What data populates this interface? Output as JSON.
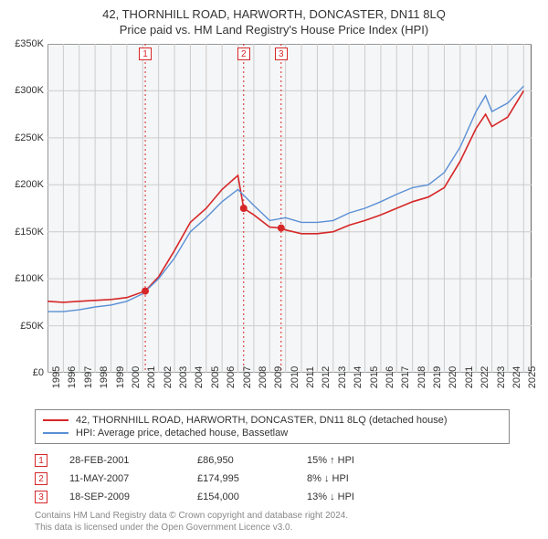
{
  "title": {
    "line1": "42, THORNHILL ROAD, HARWORTH, DONCASTER, DN11 8LQ",
    "line2": "Price paid vs. HM Land Registry's House Price Index (HPI)"
  },
  "chart": {
    "type": "line",
    "background_color": "#f5f6f7",
    "border_color": "#666666",
    "grid_color": "#cccccc",
    "xlim": [
      1995,
      2025.5
    ],
    "ylim": [
      0,
      350000
    ],
    "ytick_step": 50000,
    "yticks": [
      {
        "v": 0,
        "label": "£0"
      },
      {
        "v": 50000,
        "label": "£50K"
      },
      {
        "v": 100000,
        "label": "£100K"
      },
      {
        "v": 150000,
        "label": "£150K"
      },
      {
        "v": 200000,
        "label": "£200K"
      },
      {
        "v": 250000,
        "label": "£250K"
      },
      {
        "v": 300000,
        "label": "£300K"
      },
      {
        "v": 350000,
        "label": "£350K"
      }
    ],
    "xticks": [
      1995,
      1996,
      1997,
      1998,
      1999,
      2000,
      2001,
      2002,
      2003,
      2004,
      2005,
      2006,
      2007,
      2008,
      2009,
      2010,
      2011,
      2012,
      2013,
      2014,
      2015,
      2016,
      2017,
      2018,
      2019,
      2020,
      2021,
      2022,
      2023,
      2024,
      2025
    ],
    "series": [
      {
        "name": "price_paid",
        "color": "#d62728",
        "line_width": 1.6,
        "data": [
          [
            1995,
            76000
          ],
          [
            1996,
            75000
          ],
          [
            1997,
            76000
          ],
          [
            1998,
            77000
          ],
          [
            1999,
            78000
          ],
          [
            2000,
            80000
          ],
          [
            2001.16,
            86950
          ],
          [
            2002,
            102000
          ],
          [
            2003,
            130000
          ],
          [
            2004,
            160000
          ],
          [
            2005,
            175000
          ],
          [
            2006,
            195000
          ],
          [
            2007,
            210000
          ],
          [
            2007.36,
            174995
          ],
          [
            2008,
            168000
          ],
          [
            2009,
            155000
          ],
          [
            2009.72,
            154000
          ],
          [
            2010,
            152000
          ],
          [
            2011,
            148000
          ],
          [
            2012,
            148000
          ],
          [
            2013,
            150000
          ],
          [
            2014,
            157000
          ],
          [
            2015,
            162000
          ],
          [
            2016,
            168000
          ],
          [
            2017,
            175000
          ],
          [
            2018,
            182000
          ],
          [
            2019,
            187000
          ],
          [
            2020,
            197000
          ],
          [
            2021,
            225000
          ],
          [
            2022,
            260000
          ],
          [
            2022.6,
            275000
          ],
          [
            2023,
            262000
          ],
          [
            2024,
            272000
          ],
          [
            2025,
            300000
          ]
        ]
      },
      {
        "name": "hpi",
        "color": "#5a8fd6",
        "line_width": 1.4,
        "data": [
          [
            1995,
            65000
          ],
          [
            1996,
            65000
          ],
          [
            1997,
            67000
          ],
          [
            1998,
            70000
          ],
          [
            1999,
            72000
          ],
          [
            2000,
            76000
          ],
          [
            2001,
            84000
          ],
          [
            2002,
            100000
          ],
          [
            2003,
            122000
          ],
          [
            2004,
            150000
          ],
          [
            2005,
            165000
          ],
          [
            2006,
            182000
          ],
          [
            2007,
            195000
          ],
          [
            2008,
            178000
          ],
          [
            2009,
            162000
          ],
          [
            2010,
            165000
          ],
          [
            2011,
            160000
          ],
          [
            2012,
            160000
          ],
          [
            2013,
            162000
          ],
          [
            2014,
            170000
          ],
          [
            2015,
            175000
          ],
          [
            2016,
            182000
          ],
          [
            2017,
            190000
          ],
          [
            2018,
            197000
          ],
          [
            2019,
            200000
          ],
          [
            2020,
            213000
          ],
          [
            2021,
            240000
          ],
          [
            2022,
            278000
          ],
          [
            2022.6,
            295000
          ],
          [
            2023,
            278000
          ],
          [
            2024,
            287000
          ],
          [
            2025,
            305000
          ]
        ]
      }
    ],
    "sale_markers": [
      {
        "n": "1",
        "x": 2001.16,
        "y": 86950,
        "box_top": 4
      },
      {
        "n": "2",
        "x": 2007.36,
        "y": 174995,
        "box_top": 4
      },
      {
        "n": "3",
        "x": 2009.72,
        "y": 154000,
        "box_top": 4
      }
    ],
    "marker_line_color": "#d62728",
    "marker_dot_color": "#d62728",
    "marker_dot_radius": 4
  },
  "legend": {
    "items": [
      {
        "color": "#d62728",
        "label": "42, THORNHILL ROAD, HARWORTH, DONCASTER, DN11 8LQ (detached house)"
      },
      {
        "color": "#5a8fd6",
        "label": "HPI: Average price, detached house, Bassetlaw"
      }
    ]
  },
  "sales_table": [
    {
      "n": "1",
      "date": "28-FEB-2001",
      "price": "£86,950",
      "delta": "15% ↑ HPI"
    },
    {
      "n": "2",
      "date": "11-MAY-2007",
      "price": "£174,995",
      "delta": "8% ↓ HPI"
    },
    {
      "n": "3",
      "date": "18-SEP-2009",
      "price": "£154,000",
      "delta": "13% ↓ HPI"
    }
  ],
  "footer": {
    "line1": "Contains HM Land Registry data © Crown copyright and database right 2024.",
    "line2": "This data is licensed under the Open Government Licence v3.0."
  }
}
